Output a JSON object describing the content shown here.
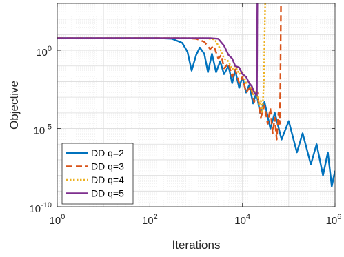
{
  "chart_data": {
    "type": "line",
    "xlabel": "Iterations",
    "ylabel": "Objective",
    "x_scale": "log",
    "y_scale": "log",
    "xlim": [
      1,
      1000000
    ],
    "ylim": [
      1e-10,
      1000
    ],
    "x_ticks": [
      {
        "value": 1,
        "base": "10",
        "exp": "0"
      },
      {
        "value": 100,
        "base": "10",
        "exp": "2"
      },
      {
        "value": 10000,
        "base": "10",
        "exp": "4"
      },
      {
        "value": 1000000,
        "base": "10",
        "exp": "6"
      }
    ],
    "y_ticks": [
      {
        "value": 1,
        "base": "10",
        "exp": "0"
      },
      {
        "value": 1e-05,
        "base": "10",
        "exp": "-5"
      },
      {
        "value": 1e-10,
        "base": "10",
        "exp": "-10"
      }
    ],
    "grid": true,
    "legend_position": "bottom-left",
    "series": [
      {
        "name": "DD q=2",
        "color": "#0072BD",
        "dash": "solid",
        "points": [
          [
            1,
            6
          ],
          [
            150,
            6
          ],
          [
            300,
            5.5
          ],
          [
            500,
            3
          ],
          [
            650,
            0.8
          ],
          [
            800,
            0.05
          ],
          [
            1000,
            0.5
          ],
          [
            1200,
            1.5
          ],
          [
            1500,
            0.6
          ],
          [
            1800,
            0.04
          ],
          [
            2200,
            0.6
          ],
          [
            2700,
            0.04
          ],
          [
            3300,
            0.2
          ],
          [
            4000,
            0.03
          ],
          [
            5000,
            0.1
          ],
          [
            6000,
            0.008
          ],
          [
            7000,
            0.05
          ],
          [
            8500,
            0.004
          ],
          [
            10000,
            0.02
          ],
          [
            12000,
            0.002
          ],
          [
            14000,
            0.006
          ],
          [
            17000,
            0.0004
          ],
          [
            20000,
            0.002
          ],
          [
            24000,
            0.0001
          ],
          [
            30000,
            0.0005
          ],
          [
            40000,
            1e-05
          ],
          [
            50000,
            0.0001
          ],
          [
            70000,
            2e-06
          ],
          [
            100000,
            3e-05
          ],
          [
            150000,
            3e-07
          ],
          [
            200000,
            5e-06
          ],
          [
            300000,
            5e-08
          ],
          [
            400000,
            1e-06
          ],
          [
            550000,
            1e-08
          ],
          [
            700000,
            3e-07
          ],
          [
            850000,
            2e-09
          ],
          [
            1000000,
            2e-08
          ]
        ]
      },
      {
        "name": "DD q=3",
        "color": "#D95319",
        "dash": "dashed",
        "points": [
          [
            1,
            6
          ],
          [
            500,
            6
          ],
          [
            1000,
            5.5
          ],
          [
            1500,
            3.5
          ],
          [
            2000,
            1.2
          ],
          [
            2400,
            2
          ],
          [
            3000,
            0.3
          ],
          [
            3500,
            0.5
          ],
          [
            4000,
            0.07
          ],
          [
            5000,
            0.15
          ],
          [
            6000,
            0.02
          ],
          [
            7000,
            0.06
          ],
          [
            8500,
            0.008
          ],
          [
            10000,
            0.02
          ],
          [
            12000,
            0.002
          ],
          [
            15000,
            0.005
          ],
          [
            18000,
            0.0005
          ],
          [
            21000,
            0.002
          ],
          [
            25000,
            5e-05
          ],
          [
            30000,
            0.0003
          ],
          [
            35000,
            2e-05
          ],
          [
            40000,
            0.0002
          ],
          [
            45000,
            5e-06
          ],
          [
            50000,
            5e-05
          ],
          [
            55000,
            2e-06
          ],
          [
            60000,
            0.0001
          ],
          [
            64000,
            2e-05
          ],
          [
            66000,
            0.01
          ],
          [
            68000,
            1000
          ]
        ]
      },
      {
        "name": "DD q=4",
        "color": "#EDB120",
        "dash": "dotted",
        "points": [
          [
            1,
            6
          ],
          [
            1500,
            6
          ],
          [
            2500,
            5
          ],
          [
            3200,
            1.5
          ],
          [
            4000,
            0.3
          ],
          [
            5000,
            0.2
          ],
          [
            6000,
            0.06
          ],
          [
            7000,
            0.1
          ],
          [
            8500,
            0.03
          ],
          [
            10000,
            0.04
          ],
          [
            12000,
            0.008
          ],
          [
            14000,
            0.01
          ],
          [
            17000,
            0.0015
          ],
          [
            20000,
            0.003
          ],
          [
            23000,
            0.0003
          ],
          [
            25000,
            0.0006
          ],
          [
            27000,
            0.0001
          ],
          [
            29000,
            0.01
          ],
          [
            31000,
            1000
          ]
        ]
      },
      {
        "name": "DD q=5",
        "color": "#7E2F8E",
        "dash": "solid",
        "points": [
          [
            1,
            6
          ],
          [
            2000,
            6
          ],
          [
            3000,
            5.5
          ],
          [
            4000,
            2
          ],
          [
            5000,
            0.5
          ],
          [
            6000,
            0.3
          ],
          [
            7000,
            0.1
          ],
          [
            8500,
            0.08
          ],
          [
            10000,
            0.03
          ],
          [
            12000,
            0.02
          ],
          [
            14000,
            0.008
          ],
          [
            16000,
            0.005
          ],
          [
            18000,
            0.002
          ],
          [
            19500,
            0.0015
          ],
          [
            20500,
            0.0015
          ],
          [
            21000,
            1000
          ]
        ]
      }
    ]
  }
}
